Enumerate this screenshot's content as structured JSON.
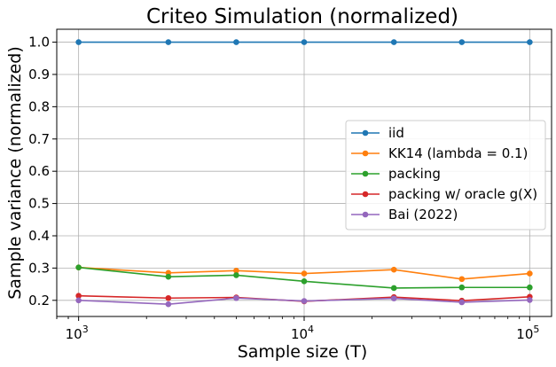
{
  "chart_data": {
    "type": "line",
    "title": "Criteo Simulation (normalized)",
    "xlabel": "Sample size (T)",
    "ylabel": "Sample variance (normalized)",
    "x_scale": "log",
    "xlim": [
      800,
      125000
    ],
    "ylim": [
      0.15,
      1.04
    ],
    "grid": true,
    "legend_position": "center-right",
    "x": [
      1000,
      2500,
      5000,
      10000,
      25000,
      50000,
      100000
    ],
    "x_tick_labels": [
      {
        "value": 1000,
        "base": "10",
        "exp": "3"
      },
      {
        "value": 10000,
        "base": "10",
        "exp": "4"
      },
      {
        "value": 100000,
        "base": "10",
        "exp": "5"
      }
    ],
    "y_ticks": [
      0.2,
      0.3,
      0.4,
      0.5,
      0.6,
      0.7,
      0.8,
      0.9,
      1.0
    ],
    "y_tick_labels": [
      "0.2",
      "0.3",
      "0.4",
      "0.5",
      "0.6",
      "0.7",
      "0.8",
      "0.9",
      "1.0"
    ],
    "series": [
      {
        "name": "iid",
        "color": "#1f77b4",
        "values": [
          1.0,
          1.0,
          1.0,
          1.0,
          1.0,
          1.0,
          1.0
        ]
      },
      {
        "name": "KK14 (lambda = 0.1)",
        "color": "#ff7f0e",
        "values": [
          0.302,
          0.285,
          0.292,
          0.283,
          0.295,
          0.266,
          0.283
        ]
      },
      {
        "name": "packing",
        "color": "#2ca02c",
        "values": [
          0.302,
          0.273,
          0.278,
          0.259,
          0.238,
          0.24,
          0.24
        ]
      },
      {
        "name": "packing w/ oracle g(X)",
        "color": "#d62728",
        "values": [
          0.214,
          0.207,
          0.209,
          0.197,
          0.21,
          0.199,
          0.211
        ]
      },
      {
        "name": "Bai (2022)",
        "color": "#9467bd",
        "values": [
          0.2,
          0.188,
          0.207,
          0.198,
          0.206,
          0.194,
          0.201
        ]
      }
    ]
  }
}
